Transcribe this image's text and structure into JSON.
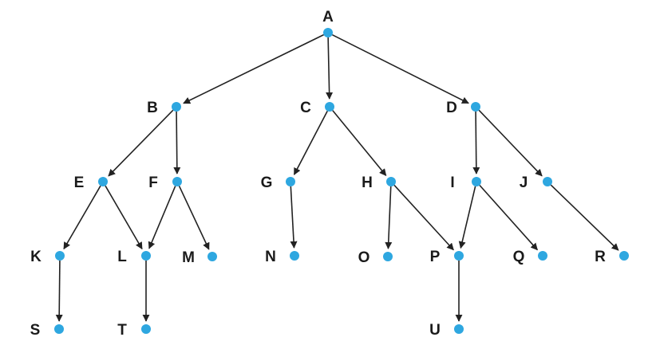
{
  "colors": {
    "node": "#2ea7e0",
    "edge": "#222222",
    "label": "#1a1a1a",
    "background": "#ffffff"
  },
  "nodes": [
    {
      "id": "A",
      "label": "A"
    },
    {
      "id": "B",
      "label": "B"
    },
    {
      "id": "C",
      "label": "C"
    },
    {
      "id": "D",
      "label": "D"
    },
    {
      "id": "E",
      "label": "E"
    },
    {
      "id": "F",
      "label": "F"
    },
    {
      "id": "G",
      "label": "G"
    },
    {
      "id": "H",
      "label": "H"
    },
    {
      "id": "I",
      "label": "I"
    },
    {
      "id": "J",
      "label": "J"
    },
    {
      "id": "K",
      "label": "K"
    },
    {
      "id": "L",
      "label": "L"
    },
    {
      "id": "M",
      "label": "M"
    },
    {
      "id": "N",
      "label": "N"
    },
    {
      "id": "O",
      "label": "O"
    },
    {
      "id": "P",
      "label": "P"
    },
    {
      "id": "Q",
      "label": "Q"
    },
    {
      "id": "R",
      "label": "R"
    },
    {
      "id": "S",
      "label": "S"
    },
    {
      "id": "T",
      "label": "T"
    },
    {
      "id": "U",
      "label": "U"
    }
  ],
  "edges": [
    [
      "A",
      "B"
    ],
    [
      "A",
      "C"
    ],
    [
      "A",
      "D"
    ],
    [
      "B",
      "E"
    ],
    [
      "B",
      "F"
    ],
    [
      "C",
      "G"
    ],
    [
      "C",
      "H"
    ],
    [
      "D",
      "I"
    ],
    [
      "D",
      "J"
    ],
    [
      "E",
      "K"
    ],
    [
      "E",
      "L"
    ],
    [
      "F",
      "L"
    ],
    [
      "F",
      "M"
    ],
    [
      "G",
      "N"
    ],
    [
      "H",
      "O"
    ],
    [
      "H",
      "P"
    ],
    [
      "I",
      "P"
    ],
    [
      "I",
      "Q"
    ],
    [
      "J",
      "R"
    ],
    [
      "K",
      "S"
    ],
    [
      "L",
      "T"
    ],
    [
      "P",
      "U"
    ]
  ]
}
